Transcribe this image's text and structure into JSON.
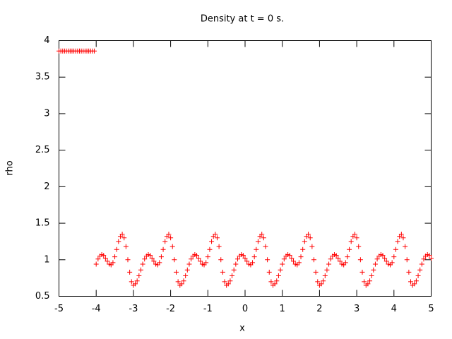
{
  "chart_data": {
    "type": "scatter",
    "title": "Density at t = 0 s.",
    "xlabel": "x",
    "ylabel": "rho",
    "color": "#ff0000",
    "xlim": [
      -5,
      5
    ],
    "xticks": [
      -5,
      -4,
      -3,
      -2,
      -1,
      0,
      1,
      2,
      3,
      4,
      5
    ],
    "ylim": [
      0.5,
      4
    ],
    "yticks": [
      0.5,
      1,
      1.5,
      2,
      2.5,
      3,
      3.5,
      4
    ],
    "x": [
      -5,
      -4.95,
      -4.9,
      -4.85,
      -4.8,
      -4.75,
      -4.7,
      -4.65,
      -4.6,
      -4.55,
      -4.5,
      -4.45,
      -4.4,
      -4.35,
      -4.3,
      -4.25,
      -4.2,
      -4.15,
      -4.1,
      -4.05,
      -4,
      -3.95,
      -3.9,
      -3.85,
      -3.8,
      -3.75,
      -3.7,
      -3.65,
      -3.6,
      -3.55,
      -3.5,
      -3.45,
      -3.4,
      -3.35,
      -3.3,
      -3.25,
      -3.2,
      -3.15,
      -3.1,
      -3.05,
      -3,
      -2.95,
      -2.9,
      -2.85,
      -2.8,
      -2.75,
      -2.7,
      -2.65,
      -2.6,
      -2.55,
      -2.5,
      -2.45,
      -2.4,
      -2.35,
      -2.3,
      -2.25,
      -2.2,
      -2.15,
      -2.1,
      -2.05,
      -2,
      -1.95,
      -1.9,
      -1.85,
      -1.8,
      -1.75,
      -1.7,
      -1.65,
      -1.6,
      -1.55,
      -1.5,
      -1.45,
      -1.4,
      -1.35,
      -1.3,
      -1.25,
      -1.2,
      -1.15,
      -1.1,
      -1.05,
      -1,
      -0.95,
      -0.9,
      -0.85,
      -0.8,
      -0.75,
      -0.7,
      -0.65,
      -0.6,
      -0.55,
      -0.5,
      -0.45,
      -0.4,
      -0.35,
      -0.3,
      -0.25,
      -0.2,
      -0.15,
      -0.1,
      -0.05,
      0,
      0.05,
      0.1,
      0.15,
      0.2,
      0.25,
      0.3,
      0.35,
      0.4,
      0.45,
      0.5,
      0.55,
      0.6,
      0.65,
      0.7,
      0.75,
      0.8,
      0.85,
      0.9,
      0.95,
      1,
      1.05,
      1.1,
      1.15,
      1.2,
      1.25,
      1.3,
      1.35,
      1.4,
      1.45,
      1.5,
      1.55,
      1.6,
      1.65,
      1.7,
      1.75,
      1.8,
      1.85,
      1.9,
      1.95,
      2,
      2.05,
      2.1,
      2.15,
      2.2,
      2.25,
      2.3,
      2.35,
      2.4,
      2.45,
      2.5,
      2.55,
      2.6,
      2.65,
      2.7,
      2.75,
      2.8,
      2.85,
      2.9,
      2.95,
      3,
      3.05,
      3.1,
      3.15,
      3.2,
      3.25,
      3.3,
      3.35,
      3.4,
      3.45,
      3.5,
      3.55,
      3.6,
      3.65,
      3.7,
      3.75,
      3.8,
      3.85,
      3.9,
      3.95,
      4,
      4.05,
      4.1,
      4.15,
      4.2,
      4.25,
      4.3,
      4.35,
      4.4,
      4.45,
      4.5,
      4.55,
      4.6,
      4.65,
      4.7,
      4.75,
      4.8,
      4.85,
      4.9,
      4.95,
      5
    ],
    "values": [
      3.857,
      3.857,
      3.857,
      3.857,
      3.857,
      3.857,
      3.857,
      3.857,
      3.857,
      3.857,
      3.857,
      3.857,
      3.857,
      3.857,
      3.857,
      3.857,
      3.857,
      3.857,
      3.857,
      3.857,
      0.94,
      1.01,
      1.05,
      1.07,
      1.06,
      1.02,
      0.98,
      0.94,
      0.93,
      0.96,
      1.04,
      1.14,
      1.25,
      1.32,
      1.35,
      1.3,
      1.18,
      1.0,
      0.83,
      0.7,
      0.65,
      0.67,
      0.71,
      0.78,
      0.86,
      0.94,
      1.01,
      1.05,
      1.07,
      1.06,
      1.02,
      0.98,
      0.94,
      0.93,
      0.96,
      1.04,
      1.14,
      1.25,
      1.32,
      1.35,
      1.3,
      1.18,
      1.0,
      0.83,
      0.7,
      0.65,
      0.67,
      0.71,
      0.78,
      0.86,
      0.94,
      1.01,
      1.05,
      1.07,
      1.06,
      1.02,
      0.98,
      0.94,
      0.93,
      0.96,
      1.04,
      1.14,
      1.25,
      1.32,
      1.35,
      1.3,
      1.18,
      1.0,
      0.83,
      0.7,
      0.65,
      0.67,
      0.71,
      0.78,
      0.86,
      0.94,
      1.01,
      1.05,
      1.07,
      1.06,
      1.02,
      0.98,
      0.94,
      0.93,
      0.96,
      1.04,
      1.14,
      1.25,
      1.32,
      1.35,
      1.3,
      1.18,
      1.0,
      0.83,
      0.7,
      0.65,
      0.67,
      0.71,
      0.78,
      0.86,
      0.94,
      1.01,
      1.05,
      1.07,
      1.06,
      1.02,
      0.98,
      0.94,
      0.93,
      0.96,
      1.04,
      1.14,
      1.25,
      1.32,
      1.35,
      1.3,
      1.18,
      1.0,
      0.83,
      0.7,
      0.65,
      0.67,
      0.71,
      0.78,
      0.86,
      0.94,
      1.01,
      1.05,
      1.07,
      1.06,
      1.02,
      0.98,
      0.94,
      0.93,
      0.96,
      1.04,
      1.14,
      1.25,
      1.32,
      1.35,
      1.3,
      1.18,
      1.0,
      0.83,
      0.7,
      0.65,
      0.67,
      0.71,
      0.78,
      0.86,
      0.94,
      1.01,
      1.05,
      1.07,
      1.06,
      1.02,
      0.98,
      0.94,
      0.93,
      0.96,
      1.04,
      1.14,
      1.25,
      1.32,
      1.35,
      1.3,
      1.18,
      1.0,
      0.83,
      0.7,
      0.65,
      0.67,
      0.71,
      0.78,
      0.86,
      0.94,
      1.01,
      1.05,
      1.07,
      1.06,
      1.02
    ]
  }
}
